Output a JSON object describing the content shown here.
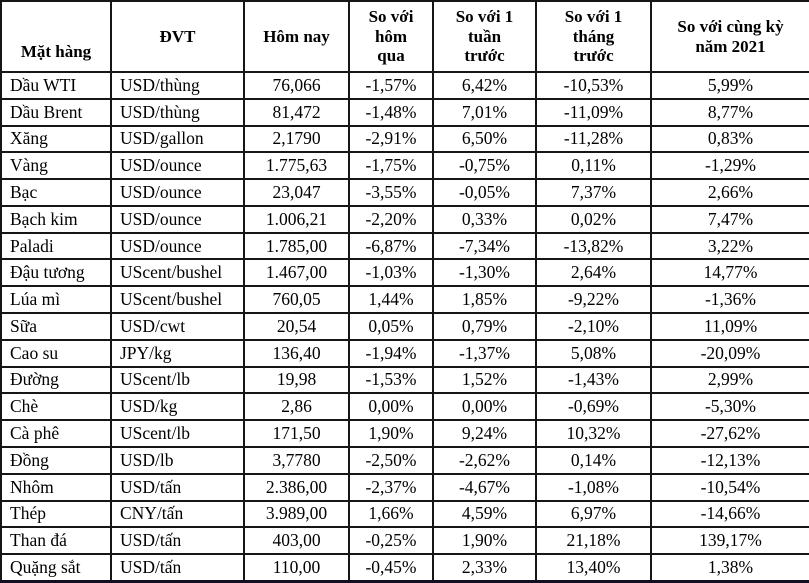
{
  "table": {
    "headers": [
      "Mặt hàng",
      "ĐVT",
      "Hôm nay",
      "So với\nhôm\nqua",
      "So với 1\ntuần\ntrước",
      "So với 1\ntháng\ntrước",
      "So với cùng kỳ\nnăm 2021"
    ],
    "column_names": [
      "commodity-name",
      "unit",
      "price-today",
      "change-vs-yesterday",
      "change-vs-1-week",
      "change-vs-1-month",
      "change-vs-2021"
    ],
    "rows": [
      [
        "Dầu WTI",
        "USD/thùng",
        "76,066",
        "-1,57%",
        "6,42%",
        "-10,53%",
        "5,99%"
      ],
      [
        "Dầu Brent",
        "USD/thùng",
        "81,472",
        "-1,48%",
        "7,01%",
        "-11,09%",
        "8,77%"
      ],
      [
        "Xăng",
        "USD/gallon",
        "2,1790",
        "-2,91%",
        "6,50%",
        "-11,28%",
        "0,83%"
      ],
      [
        "Vàng",
        "USD/ounce",
        "1.775,63",
        "-1,75%",
        "-0,75%",
        "0,11%",
        "-1,29%"
      ],
      [
        "Bạc",
        "USD/ounce",
        "23,047",
        "-3,55%",
        "-0,05%",
        "7,37%",
        "2,66%"
      ],
      [
        "Bạch kim",
        "USD/ounce",
        "1.006,21",
        "-2,20%",
        "0,33%",
        "0,02%",
        "7,47%"
      ],
      [
        "Paladi",
        "USD/ounce",
        "1.785,00",
        "-6,87%",
        "-7,34%",
        "-13,82%",
        "3,22%"
      ],
      [
        "Đậu tương",
        "UScent/bushel",
        "1.467,00",
        "-1,03%",
        "-1,30%",
        "2,64%",
        "14,77%"
      ],
      [
        "Lúa mì",
        "UScent/bushel",
        "760,05",
        "1,44%",
        "1,85%",
        "-9,22%",
        "-1,36%"
      ],
      [
        "Sữa",
        "USD/cwt",
        "20,54",
        "0,05%",
        "0,79%",
        "-2,10%",
        "11,09%"
      ],
      [
        "Cao su",
        "JPY/kg",
        "136,40",
        "-1,94%",
        "-1,37%",
        "5,08%",
        "-20,09%"
      ],
      [
        "Đường",
        "UScent/lb",
        "19,98",
        "-1,53%",
        "1,52%",
        "-1,43%",
        "2,99%"
      ],
      [
        "Chè",
        "USD/kg",
        "2,86",
        "0,00%",
        "0,00%",
        "-0,69%",
        "-5,30%"
      ],
      [
        "Cà phê",
        "UScent/lb",
        "171,50",
        "1,90%",
        "9,24%",
        "10,32%",
        "-27,62%"
      ],
      [
        "Đồng",
        "USD/lb",
        "3,7780",
        "-2,50%",
        "-2,62%",
        "0,14%",
        "-12,13%"
      ],
      [
        "Nhôm",
        "USD/tấn",
        "2.386,00",
        "-2,37%",
        "-4,67%",
        "-1,08%",
        "-10,54%"
      ],
      [
        "Thép",
        "CNY/tấn",
        "3.989,00",
        "1,66%",
        "4,59%",
        "6,97%",
        "-14,66%"
      ],
      [
        "Than đá",
        "USD/tấn",
        "403,00",
        "-0,25%",
        "1,90%",
        "21,18%",
        "139,17%"
      ],
      [
        "Quặng sắt",
        "USD/tấn",
        "110,00",
        "-0,45%",
        "2,33%",
        "13,40%",
        "1,38%"
      ]
    ]
  }
}
